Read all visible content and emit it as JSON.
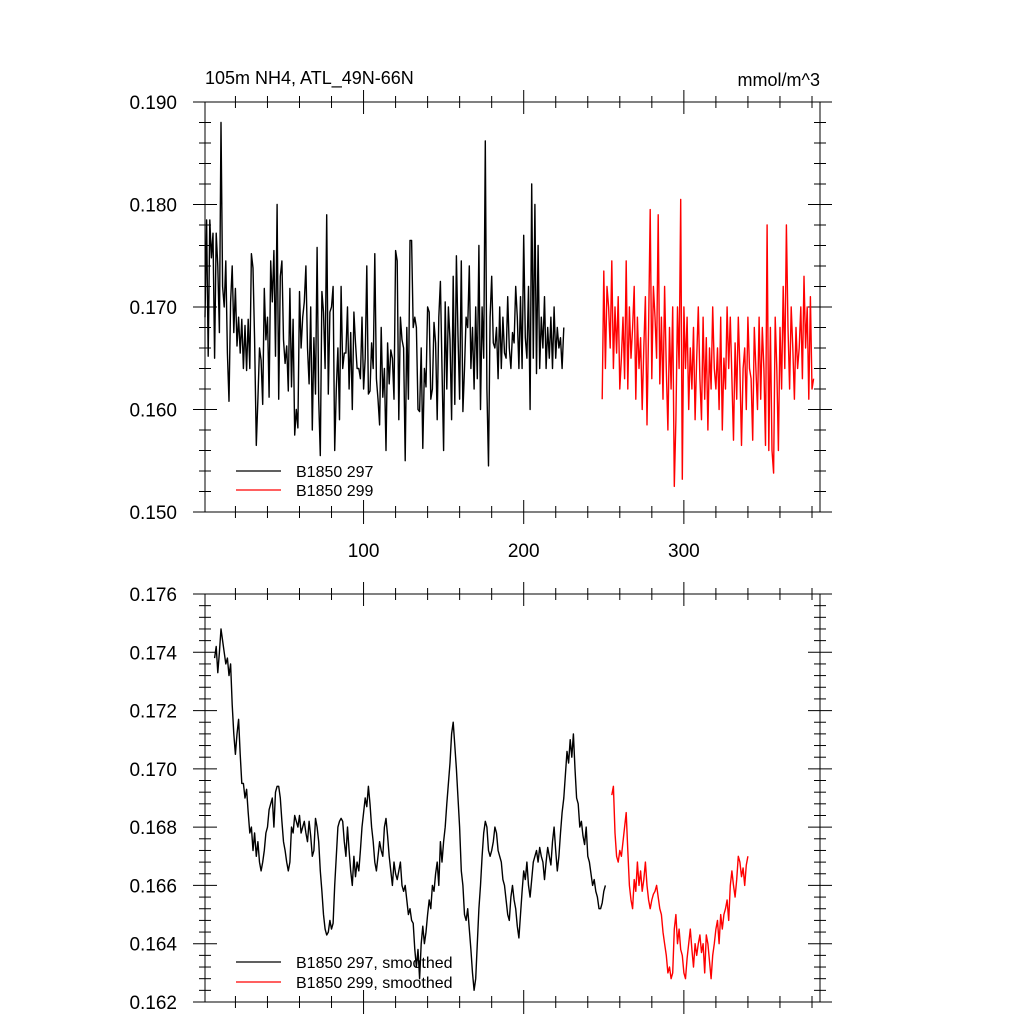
{
  "chart_data": [
    {
      "type": "line",
      "title": "105m NH4, ATL_49N-66N",
      "units": "mmol/m^3",
      "xlim": [
        1,
        385
      ],
      "ylim": [
        0.15,
        0.19
      ],
      "yticks": [
        "0.150",
        "0.160",
        "0.170",
        "0.180",
        "0.190"
      ],
      "yticks_values": [
        0.15,
        0.16,
        0.17,
        0.18,
        0.19
      ],
      "xticks": [
        "100",
        "200",
        "300"
      ],
      "xticks_values": [
        100,
        200,
        300
      ],
      "legend_position": "bottom-left",
      "series": [
        {
          "name": "B1850 297",
          "color": "#000000",
          "x_start": 1,
          "values": [
            0.169,
            0.1785,
            0.1652,
            0.1785,
            0.1748,
            0.1772,
            0.165,
            0.1772,
            0.174,
            0.1675,
            0.188,
            0.172,
            0.17,
            0.1745,
            0.1655,
            0.1608,
            0.1705,
            0.174,
            0.1675,
            0.1718,
            0.1662,
            0.169,
            0.1655,
            0.1688,
            0.164,
            0.1682,
            0.1638,
            0.1688,
            0.164,
            0.1752,
            0.1738,
            0.1668,
            0.1565,
            0.161,
            0.166,
            0.1648,
            0.1605,
            0.1718,
            0.1668,
            0.169,
            0.1612,
            0.1745,
            0.1705,
            0.1755,
            0.1652,
            0.18,
            0.161,
            0.173,
            0.1745,
            0.1668,
            0.1645,
            0.1662,
            0.1618,
            0.1718,
            0.1622,
            0.1688,
            0.1575,
            0.16,
            0.1582,
            0.1715,
            0.166,
            0.169,
            0.1705,
            0.174,
            0.166,
            0.1625,
            0.17,
            0.158,
            0.167,
            0.1615,
            0.1758,
            0.161,
            0.1555,
            0.1715,
            0.1695,
            0.164,
            0.179,
            0.1615,
            0.1695,
            0.17,
            0.172,
            0.156,
            0.162,
            0.166,
            0.159,
            0.172,
            0.164,
            0.1655,
            0.1655,
            0.17,
            0.162,
            0.1675,
            0.16,
            0.1695,
            0.1665,
            0.164,
            0.164,
            0.163,
            0.169,
            0.162,
            0.165,
            0.174,
            0.1615,
            0.1618,
            0.1665,
            0.164,
            0.1752,
            0.163,
            0.161,
            0.1585,
            0.168,
            0.1612,
            0.164,
            0.156,
            0.1665,
            0.1625,
            0.1658,
            0.165,
            0.161,
            0.1755,
            0.1745,
            0.159,
            0.169,
            0.1668,
            0.166,
            0.155,
            0.168,
            0.161,
            0.1765,
            0.1765,
            0.168,
            0.169,
            0.168,
            0.16,
            0.1598,
            0.166,
            0.1562,
            0.164,
            0.1622,
            0.17,
            0.1695,
            0.161,
            0.162,
            0.1685,
            0.1665,
            0.159,
            0.169,
            0.1725,
            0.164,
            0.156,
            0.1705,
            0.162,
            0.17,
            0.1668,
            0.159,
            0.173,
            0.1605,
            0.175,
            0.1672,
            0.161,
            0.1745,
            0.1598,
            0.164,
            0.169,
            0.168,
            0.174,
            0.164,
            0.168,
            0.162,
            0.17,
            0.163,
            0.176,
            0.16,
            0.17,
            0.165,
            0.1862,
            0.162,
            0.1545,
            0.169,
            0.173,
            0.1665,
            0.166,
            0.168,
            0.163,
            0.17,
            0.164,
            0.169,
            0.1655,
            0.165,
            0.171,
            0.166,
            0.164,
            0.1675,
            0.1665,
            0.172,
            0.169,
            0.164,
            0.171,
            0.164,
            0.177,
            0.167,
            0.165,
            0.172,
            0.16,
            0.182,
            0.165,
            0.18,
            0.1635,
            0.176,
            0.164,
            0.169,
            0.166,
            0.171,
            0.164,
            0.168,
            0.165,
            0.169,
            0.164,
            0.17,
            0.165,
            0.168,
            0.166,
            0.167,
            0.164,
            0.168
          ]
        },
        {
          "name": "B1850 299",
          "color": "#ff0000",
          "x_start": 249,
          "values": [
            0.161,
            0.1735,
            0.164,
            0.172,
            0.17,
            0.166,
            0.1745,
            0.164,
            0.17,
            0.1655,
            0.171,
            0.162,
            0.165,
            0.169,
            0.163,
            0.1745,
            0.162,
            0.17,
            0.165,
            0.168,
            0.172,
            0.161,
            0.169,
            0.164,
            0.167,
            0.16,
            0.166,
            0.171,
            0.1585,
            0.168,
            0.1795,
            0.163,
            0.172,
            0.169,
            0.165,
            0.179,
            0.1625,
            0.169,
            0.161,
            0.172,
            0.164,
            0.158,
            0.168,
            0.162,
            0.17,
            0.1525,
            0.159,
            0.17,
            0.164,
            0.1805,
            0.1532,
            0.17,
            0.164,
            0.169,
            0.16,
            0.166,
            0.162,
            0.168,
            0.159,
            0.165,
            0.17,
            0.163,
            0.159,
            0.169,
            0.161,
            0.167,
            0.158,
            0.166,
            0.162,
            0.17,
            0.164,
            0.162,
            0.166,
            0.16,
            0.169,
            0.158,
            0.165,
            0.162,
            0.17,
            0.164,
            0.169,
            0.163,
            0.157,
            0.1665,
            0.161,
            0.169,
            0.164,
            0.1565,
            0.164,
            0.166,
            0.16,
            0.169,
            0.164,
            0.163,
            0.157,
            0.168,
            0.164,
            0.16,
            0.169,
            0.161,
            0.168,
            0.164,
            0.1565,
            0.178,
            0.156,
            0.168,
            0.156,
            0.1538,
            0.169,
            0.164,
            0.156,
            0.168,
            0.162,
            0.172,
            0.164,
            0.178,
            0.168,
            0.162,
            0.17,
            0.166,
            0.161,
            0.168,
            0.164,
            0.166,
            0.17,
            0.163,
            0.173,
            0.166,
            0.17,
            0.161,
            0.171,
            0.162,
            0.163
          ]
        }
      ]
    },
    {
      "type": "line",
      "xlim": [
        1,
        385
      ],
      "ylim": [
        0.162,
        0.176
      ],
      "yticks": [
        "0.162",
        "0.164",
        "0.166",
        "0.168",
        "0.170",
        "0.172",
        "0.174",
        "0.176"
      ],
      "yticks_values": [
        0.162,
        0.164,
        0.166,
        0.168,
        0.17,
        0.172,
        0.174,
        0.176
      ],
      "legend_position": "bottom-left",
      "series": [
        {
          "name": "B1850 297, smoothed",
          "color": "#000000",
          "x_start": 7,
          "values": [
            0.1738,
            0.1742,
            0.1733,
            0.174,
            0.1748,
            0.1744,
            0.174,
            0.1736,
            0.1738,
            0.1732,
            0.1736,
            0.1722,
            0.1712,
            0.1705,
            0.1712,
            0.1717,
            0.1705,
            0.1695,
            0.1695,
            0.169,
            0.1693,
            0.1685,
            0.1678,
            0.168,
            0.1672,
            0.1678,
            0.167,
            0.1675,
            0.1668,
            0.1665,
            0.1668,
            0.1672,
            0.1678,
            0.168,
            0.1686,
            0.1688,
            0.169,
            0.168,
            0.1692,
            0.1694,
            0.1694,
            0.169,
            0.1682,
            0.1675,
            0.1672,
            0.1668,
            0.1665,
            0.1668,
            0.168,
            0.1678,
            0.1684,
            0.1682,
            0.168,
            0.1684,
            0.1678,
            0.168,
            0.1682,
            0.1678,
            0.1675,
            0.1682,
            0.1677,
            0.167,
            0.1672,
            0.1683,
            0.168,
            0.1675,
            0.1665,
            0.1658,
            0.165,
            0.1645,
            0.1643,
            0.1644,
            0.1648,
            0.1645,
            0.1647,
            0.166,
            0.167,
            0.168,
            0.1682,
            0.1683,
            0.1682,
            0.1675,
            0.167,
            0.168,
            0.1672,
            0.1665,
            0.166,
            0.167,
            0.1663,
            0.1668,
            0.1665,
            0.1672,
            0.168,
            0.1685,
            0.169,
            0.1687,
            0.1694,
            0.1688,
            0.168,
            0.1675,
            0.1668,
            0.1665,
            0.167,
            0.1675,
            0.1672,
            0.167,
            0.168,
            0.1683,
            0.1677,
            0.167,
            0.1665,
            0.166,
            0.1668,
            0.1664,
            0.1662,
            0.1665,
            0.1668,
            0.166,
            0.1658,
            0.166,
            0.1655,
            0.165,
            0.1652,
            0.1648,
            0.1647,
            0.1638,
            0.1632,
            0.1638,
            0.1628,
            0.164,
            0.1646,
            0.164,
            0.1644,
            0.165,
            0.1655,
            0.1652,
            0.166,
            0.1658,
            0.1664,
            0.1668,
            0.166,
            0.1675,
            0.1668,
            0.1675,
            0.168,
            0.1688,
            0.1695,
            0.1702,
            0.1712,
            0.1716,
            0.1708,
            0.17,
            0.169,
            0.168,
            0.1665,
            0.166,
            0.165,
            0.1648,
            0.1652,
            0.1645,
            0.1638,
            0.163,
            0.1624,
            0.1628,
            0.164,
            0.1652,
            0.166,
            0.167,
            0.1678,
            0.1682,
            0.168,
            0.1672,
            0.167,
            0.1672,
            0.1675,
            0.168,
            0.1678,
            0.1672,
            0.167,
            0.1668,
            0.1662,
            0.166,
            0.1655,
            0.165,
            0.1648,
            0.1656,
            0.166,
            0.1655,
            0.1652,
            0.1646,
            0.1642,
            0.165,
            0.1658,
            0.1665,
            0.1662,
            0.1668,
            0.166,
            0.1656,
            0.1662,
            0.1668,
            0.167,
            0.1672,
            0.1668,
            0.1673,
            0.167,
            0.1668,
            0.1662,
            0.1668,
            0.1673,
            0.167,
            0.1667,
            0.1675,
            0.168,
            0.1672,
            0.1665,
            0.167,
            0.1678,
            0.1685,
            0.169,
            0.1698,
            0.1706,
            0.1702,
            0.171,
            0.1704,
            0.1712,
            0.17,
            0.169,
            0.1688,
            0.168,
            0.1682,
            0.1677,
            0.1674,
            0.168,
            0.167,
            0.1668,
            0.1664,
            0.166,
            0.1662,
            0.1658,
            0.1656,
            0.1652,
            0.1652,
            0.1654,
            0.1658,
            0.166
          ]
        },
        {
          "name": "B1850 299, smoothed",
          "color": "#ff0000",
          "x_start": 255,
          "values": [
            0.1691,
            0.1694,
            0.1678,
            0.167,
            0.1668,
            0.1672,
            0.167,
            0.1675,
            0.168,
            0.1685,
            0.1672,
            0.166,
            0.1655,
            0.1652,
            0.1662,
            0.1658,
            0.1668,
            0.166,
            0.1665,
            0.1658,
            0.1662,
            0.1668,
            0.166,
            0.1655,
            0.1652,
            0.1655,
            0.1657,
            0.1658,
            0.166,
            0.1656,
            0.1652,
            0.165,
            0.1644,
            0.164,
            0.1636,
            0.163,
            0.1632,
            0.1628,
            0.163,
            0.1645,
            0.165,
            0.164,
            0.1645,
            0.1638,
            0.1636,
            0.163,
            0.1628,
            0.1635,
            0.164,
            0.1645,
            0.1638,
            0.1632,
            0.164,
            0.1636,
            0.164,
            0.1643,
            0.1637,
            0.164,
            0.163,
            0.1643,
            0.164,
            0.1634,
            0.1628,
            0.1636,
            0.164,
            0.1645,
            0.1648,
            0.164,
            0.165,
            0.1645,
            0.165,
            0.1652,
            0.1655,
            0.1648,
            0.166,
            0.1665,
            0.166,
            0.1656,
            0.1662,
            0.167,
            0.1668,
            0.1663,
            0.1666,
            0.166,
            0.1667,
            0.167
          ]
        }
      ]
    }
  ]
}
